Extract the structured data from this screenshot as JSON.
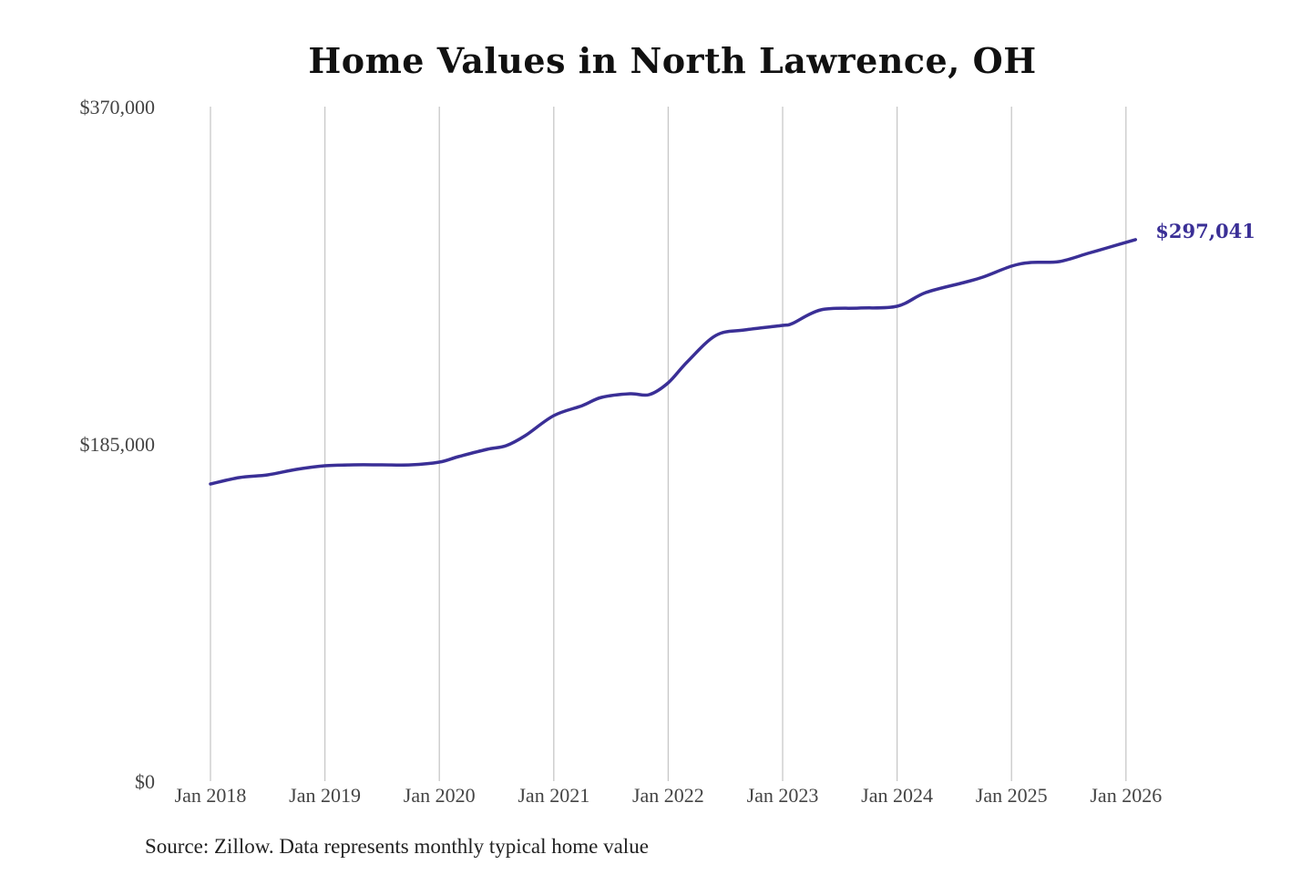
{
  "chart_data": {
    "type": "line",
    "title": "Home Values in North Lawrence, OH",
    "source": "Source: Zillow. Data represents monthly typical home value",
    "xlabel": "",
    "ylabel": "",
    "ylim": [
      0,
      370000
    ],
    "yticks": [
      0,
      185000,
      370000
    ],
    "ytick_labels": [
      "$0",
      "$185,000",
      "$370,000"
    ],
    "xticks": [
      "2018-01",
      "2019-01",
      "2020-01",
      "2021-01",
      "2022-01",
      "2023-01",
      "2024-01",
      "2025-01",
      "2026-01"
    ],
    "xtick_labels": [
      "Jan 2018",
      "Jan 2019",
      "Jan 2020",
      "Jan 2021",
      "Jan 2022",
      "Jan 2023",
      "Jan 2024",
      "Jan 2025",
      "Jan 2026"
    ],
    "grid": "vertical",
    "line_color": "#3a2f96",
    "end_label": "$297,041",
    "series": [
      {
        "x": [
          "2018-01",
          "2018-04",
          "2018-07",
          "2018-10",
          "2019-01",
          "2019-04",
          "2019-07",
          "2019-10",
          "2020-01",
          "2020-03",
          "2020-06",
          "2020-08",
          "2020-10",
          "2021-01",
          "2021-04",
          "2021-06",
          "2021-09",
          "2021-11",
          "2022-01",
          "2022-03",
          "2022-06",
          "2022-09",
          "2023-01",
          "2023-02",
          "2023-05",
          "2023-09",
          "2024-01",
          "2024-04",
          "2024-08",
          "2024-10",
          "2025-01",
          "2025-03",
          "2025-06",
          "2025-09",
          "2025-11",
          "2026-02"
        ],
        "y": [
          163000,
          166500,
          168000,
          171000,
          173000,
          173500,
          173500,
          173500,
          175000,
          178000,
          182000,
          184000,
          189500,
          200500,
          206000,
          210500,
          212500,
          212000,
          218500,
          230000,
          244500,
          247500,
          250000,
          251000,
          258500,
          259500,
          260500,
          268000,
          273500,
          276500,
          282500,
          284500,
          285000,
          289500,
          292500,
          297041
        ]
      }
    ]
  }
}
